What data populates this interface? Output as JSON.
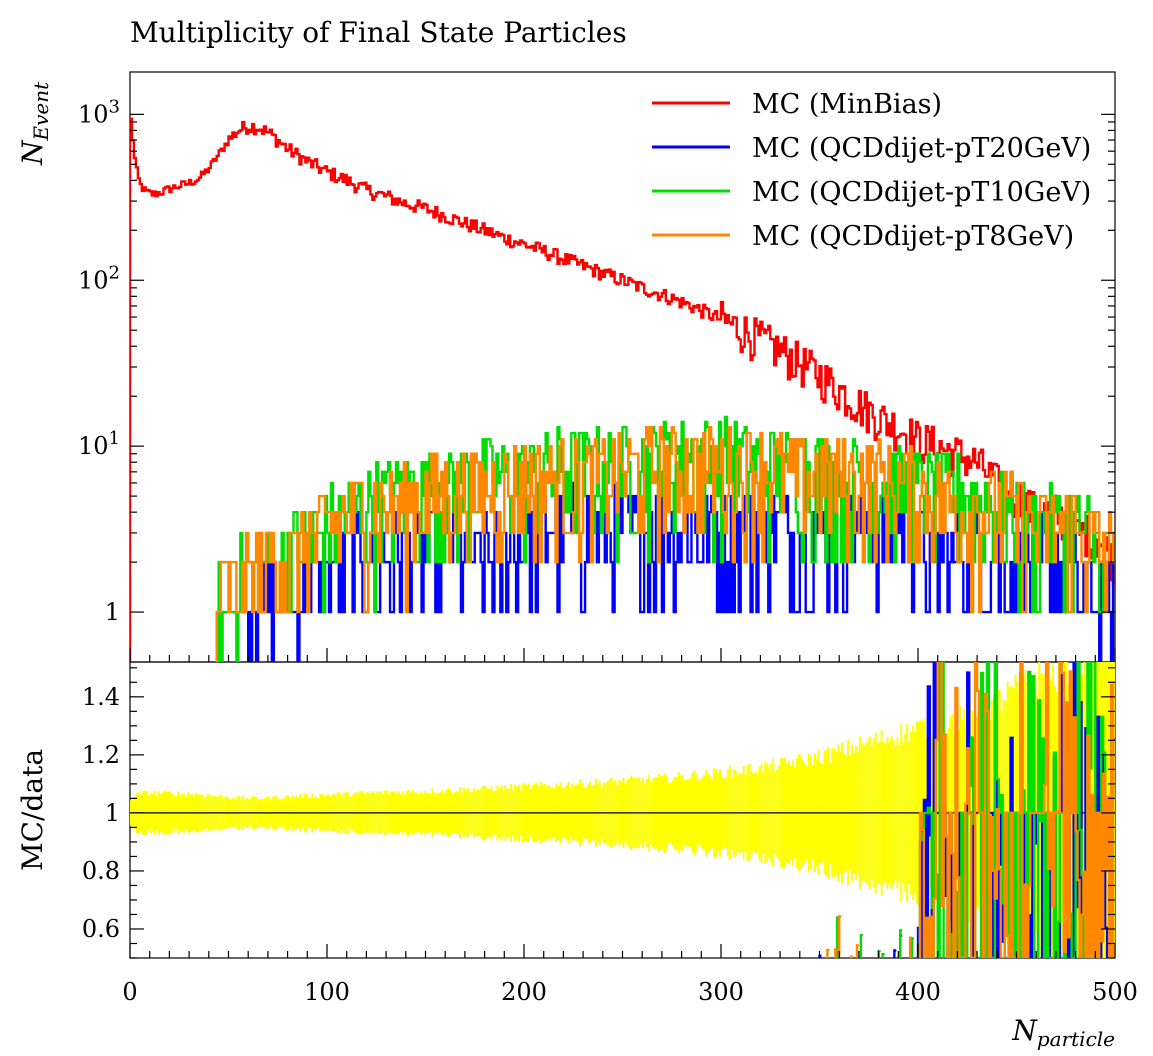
{
  "chart_data": {
    "type": "line",
    "title": "Multiplicity of Final State Particles",
    "xlabel_main": "N",
    "xlabel_sub": "particle",
    "ylabel_main": "N",
    "ylabel_sub": "Event",
    "ratio_ylabel": "MC/data",
    "xlim": [
      0,
      500
    ],
    "ylim": [
      0.5,
      1800
    ],
    "yscale": "log",
    "ratio_ylim": [
      0.5,
      1.52
    ],
    "x_ticks": [
      "0",
      "100",
      "200",
      "300",
      "400",
      "500"
    ],
    "y_ticks": [
      {
        "base": "10",
        "exp": "3",
        "value": 1000
      },
      {
        "base": "10",
        "exp": "2",
        "value": 100
      },
      {
        "base": "10",
        "exp": "1",
        "value": 10
      },
      {
        "base": "1",
        "exp": "",
        "value": 1
      }
    ],
    "ratio_ticks": [
      "1.4",
      "1.2",
      "1",
      "0.8",
      "0.6"
    ],
    "ratio_tick_values": [
      1.4,
      1.2,
      1.0,
      0.8,
      0.6
    ],
    "legend_position": "top-right",
    "series": [
      {
        "name": "MC (MinBias)",
        "color": "#ff0000",
        "points": [
          [
            0,
            1000
          ],
          [
            1,
            850
          ],
          [
            2,
            600
          ],
          [
            3,
            480
          ],
          [
            5,
            380
          ],
          [
            8,
            340
          ],
          [
            12,
            330
          ],
          [
            16,
            340
          ],
          [
            20,
            355
          ],
          [
            25,
            370
          ],
          [
            30,
            385
          ],
          [
            35,
            410
          ],
          [
            40,
            470
          ],
          [
            45,
            570
          ],
          [
            50,
            700
          ],
          [
            55,
            800
          ],
          [
            60,
            850
          ],
          [
            65,
            840
          ],
          [
            70,
            780
          ],
          [
            75,
            700
          ],
          [
            80,
            620
          ],
          [
            90,
            520
          ],
          [
            100,
            450
          ],
          [
            110,
            400
          ],
          [
            120,
            350
          ],
          [
            130,
            320
          ],
          [
            140,
            290
          ],
          [
            150,
            270
          ],
          [
            160,
            245
          ],
          [
            170,
            220
          ],
          [
            180,
            200
          ],
          [
            190,
            180
          ],
          [
            200,
            165
          ],
          [
            210,
            150
          ],
          [
            220,
            135
          ],
          [
            230,
            122
          ],
          [
            240,
            110
          ],
          [
            250,
            100
          ],
          [
            260,
            90
          ],
          [
            270,
            82
          ],
          [
            280,
            74
          ],
          [
            290,
            66
          ],
          [
            300,
            58
          ],
          [
            310,
            51
          ],
          [
            320,
            44
          ],
          [
            330,
            38
          ],
          [
            340,
            32
          ],
          [
            350,
            27
          ],
          [
            360,
            22
          ],
          [
            370,
            18
          ],
          [
            380,
            15
          ],
          [
            390,
            13
          ],
          [
            400,
            11
          ],
          [
            410,
            10
          ],
          [
            420,
            9
          ],
          [
            430,
            8
          ],
          [
            440,
            6
          ],
          [
            450,
            5
          ],
          [
            460,
            4
          ],
          [
            470,
            4
          ],
          [
            480,
            3
          ],
          [
            490,
            3
          ],
          [
            500,
            2
          ]
        ]
      },
      {
        "name": "MC (QCDdijet-pT20GeV)",
        "color": "#0000ff",
        "points": [
          [
            60,
            1
          ],
          [
            90,
            1
          ],
          [
            110,
            2
          ],
          [
            130,
            2
          ],
          [
            150,
            2
          ],
          [
            170,
            2
          ],
          [
            190,
            2
          ],
          [
            210,
            3
          ],
          [
            230,
            3
          ],
          [
            250,
            3
          ],
          [
            270,
            3
          ],
          [
            290,
            3
          ],
          [
            310,
            3
          ],
          [
            330,
            3
          ],
          [
            350,
            3
          ],
          [
            370,
            3
          ],
          [
            390,
            3
          ],
          [
            410,
            2
          ],
          [
            430,
            2
          ],
          [
            450,
            2
          ],
          [
            470,
            2
          ],
          [
            490,
            1
          ],
          [
            500,
            1
          ]
        ]
      },
      {
        "name": "MC (QCDdijet-pT10GeV)",
        "color": "#00dd00",
        "points": [
          [
            45,
            1
          ],
          [
            60,
            1.5
          ],
          [
            80,
            2
          ],
          [
            100,
            3
          ],
          [
            120,
            4
          ],
          [
            140,
            5
          ],
          [
            160,
            5
          ],
          [
            180,
            6
          ],
          [
            200,
            6
          ],
          [
            220,
            7
          ],
          [
            240,
            7
          ],
          [
            260,
            7
          ],
          [
            280,
            8
          ],
          [
            300,
            8
          ],
          [
            320,
            7
          ],
          [
            340,
            7
          ],
          [
            360,
            6
          ],
          [
            380,
            6
          ],
          [
            400,
            5
          ],
          [
            420,
            5
          ],
          [
            440,
            4
          ],
          [
            460,
            3
          ],
          [
            480,
            3
          ],
          [
            500,
            2
          ]
        ]
      },
      {
        "name": "MC (QCDdijet-pT8GeV)",
        "color": "#ff8800",
        "points": [
          [
            44,
            1
          ],
          [
            60,
            1.5
          ],
          [
            80,
            2
          ],
          [
            100,
            3
          ],
          [
            120,
            4
          ],
          [
            140,
            4
          ],
          [
            160,
            5
          ],
          [
            180,
            5
          ],
          [
            200,
            6
          ],
          [
            220,
            6
          ],
          [
            240,
            6
          ],
          [
            260,
            7
          ],
          [
            280,
            7
          ],
          [
            300,
            7
          ],
          [
            320,
            7
          ],
          [
            340,
            6
          ],
          [
            360,
            6
          ],
          [
            380,
            6
          ],
          [
            400,
            5
          ],
          [
            420,
            4
          ],
          [
            440,
            4
          ],
          [
            460,
            3
          ],
          [
            480,
            3
          ],
          [
            500,
            2
          ]
        ]
      }
    ]
  }
}
